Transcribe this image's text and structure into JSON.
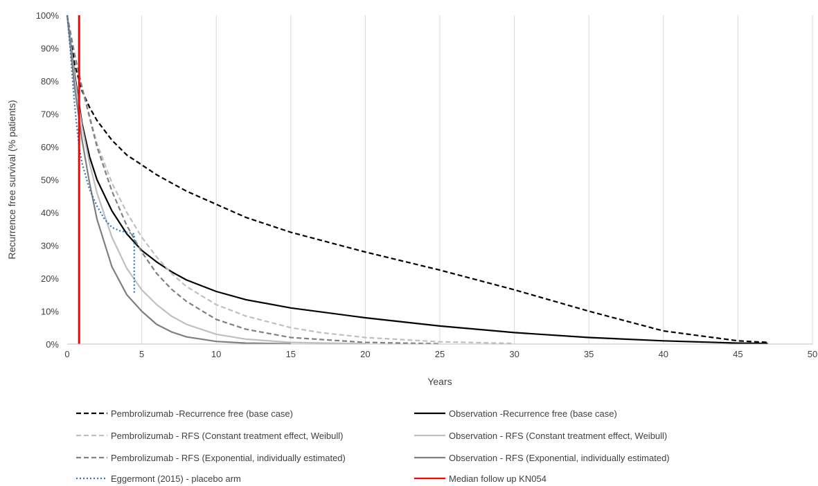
{
  "chart_data": {
    "type": "line",
    "title": "",
    "xlabel": "Years",
    "ylabel": "Recurrence free survival (% patients)",
    "xlim": [
      0,
      50
    ],
    "ylim": [
      0,
      1
    ],
    "x_ticks": [
      0,
      5,
      10,
      15,
      20,
      25,
      30,
      35,
      40,
      45,
      50
    ],
    "y_ticks": [
      0,
      0.1,
      0.2,
      0.3,
      0.4,
      0.5,
      0.6,
      0.7,
      0.8,
      0.9,
      1.0
    ],
    "x_tick_labels": [
      "0",
      "5",
      "10",
      "15",
      "20",
      "25",
      "30",
      "35",
      "40",
      "45",
      "50"
    ],
    "y_tick_labels": [
      "0%",
      "10%",
      "20%",
      "30%",
      "40%",
      "50%",
      "60%",
      "70%",
      "80%",
      "90%",
      "100%"
    ],
    "grid": "vertical",
    "legend_position": "bottom",
    "series": [
      {
        "name": "Pembrolizumab -Recurrence free (base case)",
        "color": "#000000",
        "dash": "dashed",
        "x": [
          0,
          0.5,
          1,
          1.5,
          2,
          3,
          4,
          5,
          6,
          7,
          8,
          10,
          12,
          15,
          20,
          25,
          30,
          35,
          40,
          45,
          47
        ],
        "y": [
          1.0,
          0.85,
          0.77,
          0.72,
          0.68,
          0.62,
          0.575,
          0.545,
          0.515,
          0.49,
          0.465,
          0.425,
          0.385,
          0.34,
          0.28,
          0.225,
          0.165,
          0.1,
          0.04,
          0.01,
          0.005
        ]
      },
      {
        "name": "Observation -Recurrence free (base case)",
        "color": "#000000",
        "dash": "solid",
        "x": [
          0,
          0.5,
          1,
          1.5,
          2,
          3,
          4,
          5,
          6,
          7,
          8,
          10,
          12,
          15,
          20,
          25,
          30,
          35,
          40,
          45,
          47
        ],
        "y": [
          1.0,
          0.82,
          0.67,
          0.57,
          0.5,
          0.405,
          0.335,
          0.285,
          0.25,
          0.22,
          0.195,
          0.16,
          0.135,
          0.11,
          0.08,
          0.055,
          0.035,
          0.02,
          0.01,
          0.003,
          0.002
        ]
      },
      {
        "name": "Pembrolizumab - RFS (Constant treatment effect, Weibull)",
        "color": "#bfbfbf",
        "dash": "dashed",
        "x": [
          0,
          0.5,
          1,
          2,
          3,
          4,
          5,
          6,
          7,
          8,
          10,
          12,
          15,
          17,
          20,
          25,
          30
        ],
        "y": [
          1.0,
          0.88,
          0.78,
          0.61,
          0.49,
          0.4,
          0.325,
          0.265,
          0.215,
          0.175,
          0.12,
          0.085,
          0.05,
          0.035,
          0.02,
          0.007,
          0.002
        ]
      },
      {
        "name": "Observation - RFS (Constant treatment effect, Weibull)",
        "color": "#bfbfbf",
        "dash": "solid",
        "x": [
          0,
          0.5,
          1,
          1.5,
          2,
          3,
          4,
          5,
          6,
          7,
          8,
          10,
          12,
          15,
          20
        ],
        "y": [
          1.0,
          0.81,
          0.66,
          0.55,
          0.46,
          0.325,
          0.23,
          0.165,
          0.12,
          0.085,
          0.06,
          0.03,
          0.015,
          0.005,
          0.001
        ]
      },
      {
        "name": "Pembrolizumab - RFS (Exponential, individually estimated)",
        "color": "#7f7f7f",
        "dash": "dashed",
        "x": [
          0,
          0.5,
          1,
          2,
          3,
          4,
          5,
          6,
          7,
          8,
          10,
          12,
          15,
          20,
          25
        ],
        "y": [
          1.0,
          0.88,
          0.78,
          0.6,
          0.465,
          0.36,
          0.28,
          0.215,
          0.167,
          0.13,
          0.075,
          0.045,
          0.02,
          0.005,
          0.001
        ]
      },
      {
        "name": "Observation - RFS (Exponential, individually estimated)",
        "color": "#7f7f7f",
        "dash": "solid",
        "x": [
          0,
          0.5,
          1,
          1.5,
          2,
          3,
          4,
          5,
          6,
          7,
          8,
          10,
          12,
          15
        ],
        "y": [
          1.0,
          0.78,
          0.62,
          0.49,
          0.38,
          0.235,
          0.15,
          0.1,
          0.06,
          0.037,
          0.022,
          0.008,
          0.003,
          0.001
        ]
      },
      {
        "name": "Eggermont (2015) - placebo arm",
        "color": "#2e75b6",
        "dash": "dotted",
        "x": [
          0,
          0.2,
          0.4,
          0.6,
          0.8,
          1,
          1.5,
          2,
          2.5,
          3,
          3.5,
          4,
          4.5,
          4.5
        ],
        "y": [
          1.0,
          0.9,
          0.78,
          0.68,
          0.6,
          0.55,
          0.47,
          0.42,
          0.38,
          0.355,
          0.345,
          0.34,
          0.335,
          0.15
        ]
      },
      {
        "name": "Median follow up KN054",
        "color": "#ff0000",
        "dash": "solid",
        "x": [
          0.8,
          0.8
        ],
        "y": [
          1.0,
          0.0
        ]
      }
    ]
  }
}
